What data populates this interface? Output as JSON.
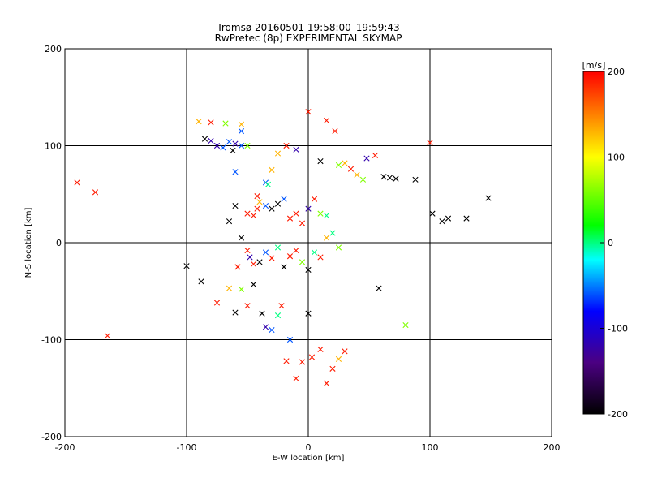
{
  "chart_data": {
    "type": "scatter",
    "title": "Tromsø 20160501 19:58:00–19:59:43",
    "subtitle": "RwPretec (8p) EXPERIMENTAL SKYMAP",
    "xlabel": "E-W location [km]",
    "ylabel": "N-S location [km]",
    "xlim": [
      -200,
      200
    ],
    "ylim": [
      -200,
      200
    ],
    "xticks": [
      "-200",
      "-100",
      "0",
      "100",
      "200"
    ],
    "yticks": [
      "-200",
      "-100",
      "0",
      "100",
      "200"
    ],
    "grid": true,
    "colorbar": {
      "label": "[m/s]",
      "range": [
        -200,
        200
      ],
      "ticks": [
        "200",
        "100",
        "0",
        "-100",
        "-200"
      ],
      "colormap": [
        "#000000",
        "#4b0082",
        "#0000ff",
        "#00ffff",
        "#00ff00",
        "#ffff00",
        "#ff0000"
      ]
    },
    "marker_types": [
      "x",
      "dot"
    ],
    "points": [
      {
        "x": -190,
        "y": 62,
        "v": 190,
        "m": "x"
      },
      {
        "x": -175,
        "y": 52,
        "v": 190,
        "m": "x"
      },
      {
        "x": -165,
        "y": -96,
        "v": 190,
        "m": "x"
      },
      {
        "x": -100,
        "y": -24,
        "v": -200,
        "m": "x"
      },
      {
        "x": -88,
        "y": -40,
        "v": -200,
        "m": "x"
      },
      {
        "x": -85,
        "y": 107,
        "v": -200,
        "m": "x"
      },
      {
        "x": -80,
        "y": 105,
        "v": -120,
        "m": "x"
      },
      {
        "x": -75,
        "y": 100,
        "v": -120,
        "m": "x"
      },
      {
        "x": -70,
        "y": 98,
        "v": -60,
        "m": "x"
      },
      {
        "x": -65,
        "y": 104,
        "v": -60,
        "m": "x"
      },
      {
        "x": -62,
        "y": 95,
        "v": -200,
        "m": "x"
      },
      {
        "x": -60,
        "y": 102,
        "v": -120,
        "m": "x"
      },
      {
        "x": -55,
        "y": 100,
        "v": -60,
        "m": "x"
      },
      {
        "x": -90,
        "y": 125,
        "v": 130,
        "m": "x"
      },
      {
        "x": -80,
        "y": 124,
        "v": 190,
        "m": "x"
      },
      {
        "x": -68,
        "y": 123,
        "v": 60,
        "m": "x"
      },
      {
        "x": -55,
        "y": 115,
        "v": -60,
        "m": "x"
      },
      {
        "x": -55,
        "y": 122,
        "v": 130,
        "m": "x"
      },
      {
        "x": -60,
        "y": 73,
        "v": -60,
        "m": "x"
      },
      {
        "x": -50,
        "y": 100,
        "v": 60,
        "m": "x"
      },
      {
        "x": -42,
        "y": 48,
        "v": 190,
        "m": "x"
      },
      {
        "x": -35,
        "y": 62,
        "v": -60,
        "m": "x"
      },
      {
        "x": -33,
        "y": 60,
        "v": 0,
        "m": "x"
      },
      {
        "x": -30,
        "y": 75,
        "v": 130,
        "m": "x"
      },
      {
        "x": -25,
        "y": 92,
        "v": 130,
        "m": "x"
      },
      {
        "x": -18,
        "y": 100,
        "v": 190,
        "m": "x"
      },
      {
        "x": -10,
        "y": 96,
        "v": -120,
        "m": "x"
      },
      {
        "x": 0,
        "y": 135,
        "v": 190,
        "m": "x"
      },
      {
        "x": 15,
        "y": 126,
        "v": 190,
        "m": "x"
      },
      {
        "x": 22,
        "y": 115,
        "v": 190,
        "m": "x"
      },
      {
        "x": 10,
        "y": 84,
        "v": -200,
        "m": "x"
      },
      {
        "x": 25,
        "y": 80,
        "v": 60,
        "m": "x"
      },
      {
        "x": 30,
        "y": 82,
        "v": 130,
        "m": "x"
      },
      {
        "x": 35,
        "y": 76,
        "v": 190,
        "m": "x"
      },
      {
        "x": 40,
        "y": 70,
        "v": 130,
        "m": "x"
      },
      {
        "x": 45,
        "y": 65,
        "v": 60,
        "m": "x"
      },
      {
        "x": 48,
        "y": 87,
        "v": -120,
        "m": "x"
      },
      {
        "x": 55,
        "y": 90,
        "v": 190,
        "m": "x"
      },
      {
        "x": 62,
        "y": 68,
        "v": -200,
        "m": "x"
      },
      {
        "x": 67,
        "y": 67,
        "v": -200,
        "m": "x"
      },
      {
        "x": 72,
        "y": 66,
        "v": -200,
        "m": "x"
      },
      {
        "x": 88,
        "y": 65,
        "v": -200,
        "m": "x"
      },
      {
        "x": 100,
        "y": 103,
        "v": 190,
        "m": "x"
      },
      {
        "x": 102,
        "y": 30,
        "v": -200,
        "m": "x"
      },
      {
        "x": 110,
        "y": 22,
        "v": -200,
        "m": "x"
      },
      {
        "x": 115,
        "y": 25,
        "v": -200,
        "m": "x"
      },
      {
        "x": 130,
        "y": 25,
        "v": -200,
        "m": "x"
      },
      {
        "x": 148,
        "y": 46,
        "v": -200,
        "m": "x"
      },
      {
        "x": -65,
        "y": 22,
        "v": -200,
        "m": "x"
      },
      {
        "x": -60,
        "y": 38,
        "v": -200,
        "m": "x"
      },
      {
        "x": -50,
        "y": 30,
        "v": 190,
        "m": "x"
      },
      {
        "x": -45,
        "y": 28,
        "v": 190,
        "m": "x"
      },
      {
        "x": -42,
        "y": 35,
        "v": 190,
        "m": "x"
      },
      {
        "x": -40,
        "y": 42,
        "v": 130,
        "m": "x"
      },
      {
        "x": -35,
        "y": 38,
        "v": -60,
        "m": "x"
      },
      {
        "x": -30,
        "y": 35,
        "v": -200,
        "m": "x"
      },
      {
        "x": -25,
        "y": 40,
        "v": -200,
        "m": "x"
      },
      {
        "x": -20,
        "y": 45,
        "v": -60,
        "m": "x"
      },
      {
        "x": -15,
        "y": 25,
        "v": 190,
        "m": "x"
      },
      {
        "x": -10,
        "y": 30,
        "v": 190,
        "m": "x"
      },
      {
        "x": -5,
        "y": 20,
        "v": 190,
        "m": "x"
      },
      {
        "x": 0,
        "y": 35,
        "v": -120,
        "m": "x"
      },
      {
        "x": 5,
        "y": 45,
        "v": 190,
        "m": "x"
      },
      {
        "x": 10,
        "y": 30,
        "v": 60,
        "m": "x"
      },
      {
        "x": 15,
        "y": 28,
        "v": 0,
        "m": "x"
      },
      {
        "x": -55,
        "y": 5,
        "v": -200,
        "m": "x"
      },
      {
        "x": -50,
        "y": -8,
        "v": 190,
        "m": "x"
      },
      {
        "x": -48,
        "y": -15,
        "v": -120,
        "m": "x"
      },
      {
        "x": -45,
        "y": -22,
        "v": 190,
        "m": "x"
      },
      {
        "x": -40,
        "y": -20,
        "v": -200,
        "m": "x"
      },
      {
        "x": -35,
        "y": -10,
        "v": -60,
        "m": "x"
      },
      {
        "x": -30,
        "y": -16,
        "v": 190,
        "m": "x"
      },
      {
        "x": -25,
        "y": -5,
        "v": 0,
        "m": "x"
      },
      {
        "x": -20,
        "y": -25,
        "v": -200,
        "m": "x"
      },
      {
        "x": -15,
        "y": -14,
        "v": 190,
        "m": "x"
      },
      {
        "x": -10,
        "y": -8,
        "v": 190,
        "m": "x"
      },
      {
        "x": -5,
        "y": -20,
        "v": 60,
        "m": "x"
      },
      {
        "x": 0,
        "y": -28,
        "v": -200,
        "m": "x"
      },
      {
        "x": 5,
        "y": -10,
        "v": 0,
        "m": "x"
      },
      {
        "x": 10,
        "y": -15,
        "v": 190,
        "m": "x"
      },
      {
        "x": 15,
        "y": 5,
        "v": 130,
        "m": "x"
      },
      {
        "x": 20,
        "y": 10,
        "v": 0,
        "m": "x"
      },
      {
        "x": 25,
        "y": -5,
        "v": 60,
        "m": "x"
      },
      {
        "x": -58,
        "y": -25,
        "v": 190,
        "m": "x"
      },
      {
        "x": -65,
        "y": -47,
        "v": 130,
        "m": "x"
      },
      {
        "x": -55,
        "y": -48,
        "v": 60,
        "m": "x"
      },
      {
        "x": -45,
        "y": -43,
        "v": -200,
        "m": "x"
      },
      {
        "x": -60,
        "y": -72,
        "v": -200,
        "m": "x"
      },
      {
        "x": -50,
        "y": -65,
        "v": 190,
        "m": "x"
      },
      {
        "x": -38,
        "y": -73,
        "v": -200,
        "m": "x"
      },
      {
        "x": -35,
        "y": -87,
        "v": -120,
        "m": "x"
      },
      {
        "x": -25,
        "y": -75,
        "v": 0,
        "m": "x"
      },
      {
        "x": -22,
        "y": -65,
        "v": 190,
        "m": "x"
      },
      {
        "x": -15,
        "y": -100,
        "v": -60,
        "m": "x"
      },
      {
        "x": -18,
        "y": -122,
        "v": 190,
        "m": "x"
      },
      {
        "x": -10,
        "y": -140,
        "v": 190,
        "m": "x"
      },
      {
        "x": 0,
        "y": -73,
        "v": -200,
        "m": "x"
      },
      {
        "x": -5,
        "y": -123,
        "v": 190,
        "m": "x"
      },
      {
        "x": 3,
        "y": -118,
        "v": 190,
        "m": "x"
      },
      {
        "x": 10,
        "y": -110,
        "v": 190,
        "m": "x"
      },
      {
        "x": 15,
        "y": -145,
        "v": 190,
        "m": "x"
      },
      {
        "x": 20,
        "y": -130,
        "v": 190,
        "m": "x"
      },
      {
        "x": 25,
        "y": -120,
        "v": 130,
        "m": "x"
      },
      {
        "x": 30,
        "y": -112,
        "v": 190,
        "m": "x"
      },
      {
        "x": 58,
        "y": -47,
        "v": -200,
        "m": "x"
      },
      {
        "x": 80,
        "y": -85,
        "v": 60,
        "m": "x"
      },
      {
        "x": -75,
        "y": -62,
        "v": 190,
        "m": "x"
      },
      {
        "x": -30,
        "y": -90,
        "v": -60,
        "m": "x"
      }
    ]
  }
}
